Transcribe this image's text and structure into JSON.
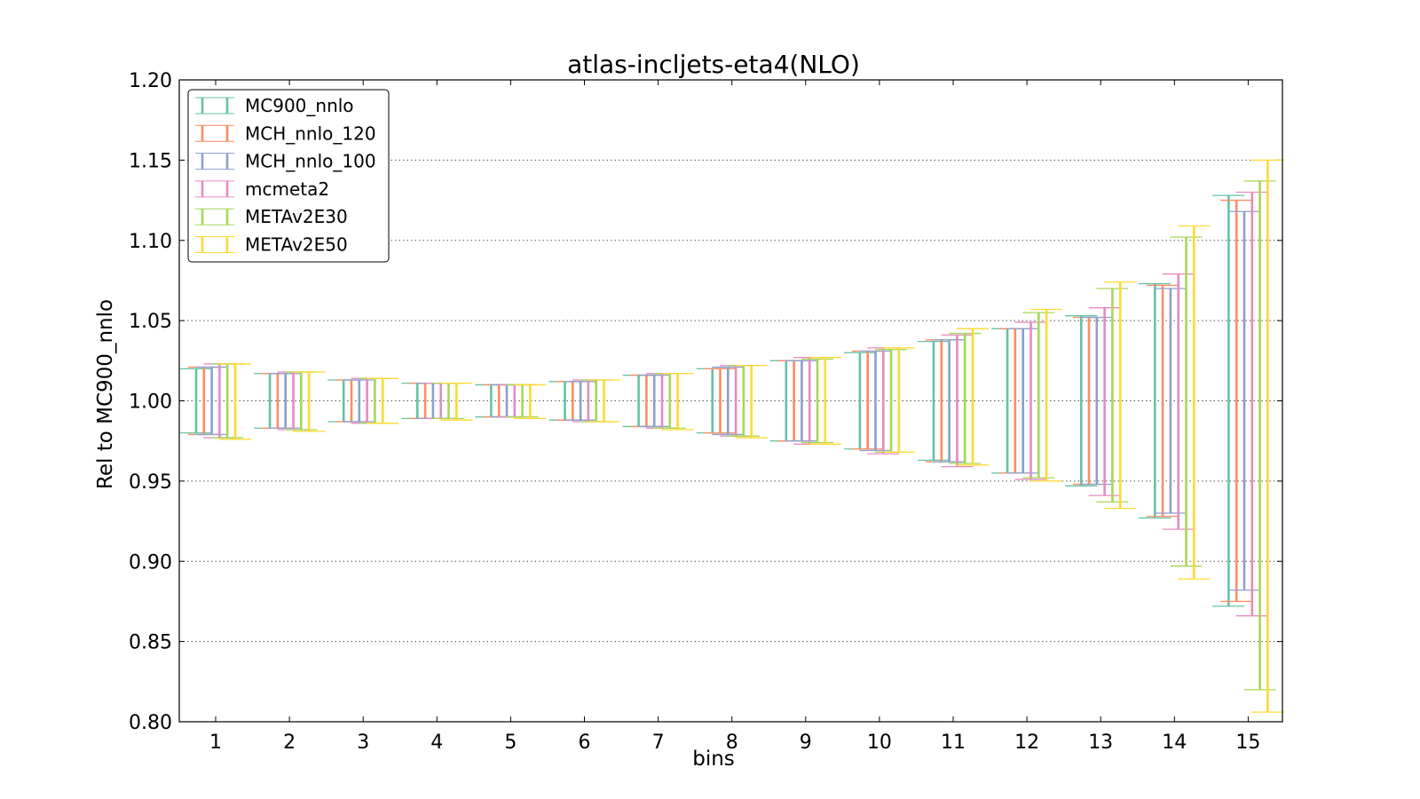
{
  "chart_data": {
    "type": "errorbar",
    "title": "atlas-incljets-eta4(NLO)",
    "xlabel": "bins",
    "ylabel": "Rel to MC900_nnlo",
    "ylim": [
      0.8,
      1.2
    ],
    "yticks": [
      "0.80",
      "0.85",
      "0.90",
      "0.95",
      "1.00",
      "1.05",
      "1.10",
      "1.15",
      "1.20"
    ],
    "categories": [
      "1",
      "2",
      "3",
      "4",
      "5",
      "6",
      "7",
      "8",
      "9",
      "10",
      "11",
      "12",
      "13",
      "14",
      "15"
    ],
    "grid": "horizontal-dotted",
    "legend_position": "top-left",
    "series": [
      {
        "name": "MC900_nnlo",
        "color": "#66c2a5",
        "low": [
          0.98,
          0.983,
          0.987,
          0.989,
          0.99,
          0.988,
          0.984,
          0.98,
          0.975,
          0.97,
          0.963,
          0.955,
          0.947,
          0.927,
          0.872
        ],
        "high": [
          1.02,
          1.017,
          1.013,
          1.011,
          1.01,
          1.012,
          1.016,
          1.02,
          1.025,
          1.03,
          1.037,
          1.045,
          1.053,
          1.073,
          1.128
        ]
      },
      {
        "name": "MCH_nnlo_120",
        "color": "#fc8d62",
        "low": [
          0.979,
          0.983,
          0.987,
          0.989,
          0.99,
          0.988,
          0.984,
          0.98,
          0.975,
          0.97,
          0.962,
          0.955,
          0.948,
          0.928,
          0.875
        ],
        "high": [
          1.021,
          1.017,
          1.013,
          1.011,
          1.01,
          1.012,
          1.016,
          1.02,
          1.025,
          1.031,
          1.038,
          1.045,
          1.052,
          1.072,
          1.125
        ]
      },
      {
        "name": "MCH_nnlo_100",
        "color": "#8da0cb",
        "low": [
          0.979,
          0.983,
          0.987,
          0.989,
          0.99,
          0.988,
          0.984,
          0.979,
          0.975,
          0.969,
          0.962,
          0.955,
          0.948,
          0.93,
          0.882
        ],
        "high": [
          1.021,
          1.017,
          1.013,
          1.011,
          1.01,
          1.012,
          1.016,
          1.021,
          1.025,
          1.031,
          1.038,
          1.045,
          1.052,
          1.07,
          1.118
        ]
      },
      {
        "name": "mcmeta2",
        "color": "#e78ac3",
        "low": [
          0.977,
          0.982,
          0.986,
          0.989,
          0.99,
          0.987,
          0.983,
          0.978,
          0.973,
          0.967,
          0.959,
          0.951,
          0.941,
          0.92,
          0.866
        ],
        "high": [
          1.023,
          1.018,
          1.014,
          1.011,
          1.01,
          1.013,
          1.017,
          1.022,
          1.027,
          1.033,
          1.041,
          1.049,
          1.058,
          1.079,
          1.13
        ]
      },
      {
        "name": "METAv2E30",
        "color": "#a6d854",
        "low": [
          0.977,
          0.982,
          0.986,
          0.989,
          0.99,
          0.987,
          0.983,
          0.978,
          0.974,
          0.968,
          0.961,
          0.952,
          0.937,
          0.897,
          0.82
        ],
        "high": [
          1.023,
          1.018,
          1.014,
          1.011,
          1.01,
          1.013,
          1.017,
          1.022,
          1.026,
          1.032,
          1.042,
          1.055,
          1.07,
          1.102,
          1.137
        ]
      },
      {
        "name": "METAv2E50",
        "color": "#ffd92f",
        "low": [
          0.976,
          0.981,
          0.986,
          0.988,
          0.989,
          0.987,
          0.982,
          0.977,
          0.973,
          0.968,
          0.96,
          0.95,
          0.933,
          0.889,
          0.806
        ],
        "high": [
          1.023,
          1.018,
          1.014,
          1.011,
          1.01,
          1.013,
          1.017,
          1.022,
          1.027,
          1.033,
          1.045,
          1.057,
          1.074,
          1.109,
          1.15
        ]
      }
    ]
  }
}
